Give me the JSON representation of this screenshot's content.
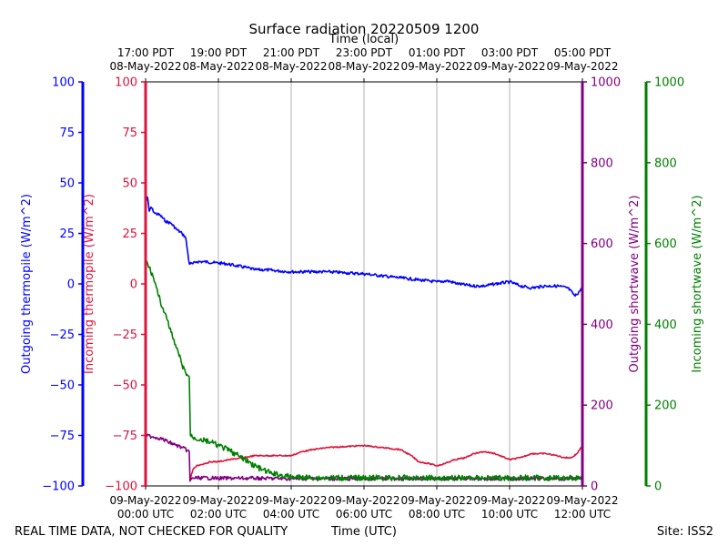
{
  "title": "Surface radiation 20220509 1200",
  "footer_left": "REAL TIME DATA, NOT CHECKED FOR QUALITY",
  "footer_right": "Site: ISS2",
  "chart_data": {
    "type": "line",
    "title": "Surface radiation 20220509 1200",
    "xlabel": "Time (UTC)",
    "xlabel_top": "Time (local)",
    "xlim": [
      0,
      12
    ],
    "x_ticks_bottom": [
      {
        "x": 0,
        "line1": "09-May-2022",
        "line2": "00:00 UTC"
      },
      {
        "x": 2,
        "line1": "09-May-2022",
        "line2": "02:00 UTC"
      },
      {
        "x": 4,
        "line1": "09-May-2022",
        "line2": "04:00 UTC"
      },
      {
        "x": 6,
        "line1": "09-May-2022",
        "line2": "06:00 UTC"
      },
      {
        "x": 8,
        "line1": "09-May-2022",
        "line2": "08:00 UTC"
      },
      {
        "x": 10,
        "line1": "09-May-2022",
        "line2": "10:00 UTC"
      },
      {
        "x": 12,
        "line1": "09-May-2022",
        "line2": "12:00 UTC"
      }
    ],
    "x_ticks_top": [
      {
        "x": 0,
        "line1": "17:00 PDT",
        "line2": "08-May-2022"
      },
      {
        "x": 2,
        "line1": "19:00 PDT",
        "line2": "08-May-2022"
      },
      {
        "x": 4,
        "line1": "21:00 PDT",
        "line2": "08-May-2022"
      },
      {
        "x": 6,
        "line1": "23:00 PDT",
        "line2": "08-May-2022"
      },
      {
        "x": 8,
        "line1": "01:00 PDT",
        "line2": "09-May-2022"
      },
      {
        "x": 10,
        "line1": "03:00 PDT",
        "line2": "09-May-2022"
      },
      {
        "x": 12,
        "line1": "05:00 PDT",
        "line2": "09-May-2022"
      }
    ],
    "grid_x": true,
    "axes": [
      {
        "id": "outgoing_thermopile",
        "label": "Outgoing thermopile (W/m^2)",
        "color": "#0000ff",
        "ylim": [
          -100,
          100
        ],
        "ticks": [
          -100,
          -75,
          -50,
          -25,
          0,
          25,
          50,
          75,
          100
        ]
      },
      {
        "id": "incoming_thermopile",
        "label": "Incoming thermopile (W/m^2)",
        "color": "#dc143c",
        "ylim": [
          -100,
          100
        ],
        "ticks": [
          -100,
          -75,
          -50,
          -25,
          0,
          25,
          50,
          75,
          100
        ]
      },
      {
        "id": "outgoing_shortwave",
        "label": "Outgoing shortwave (W/m^2)",
        "color": "#800080",
        "ylim": [
          0,
          1000
        ],
        "ticks": [
          0,
          200,
          400,
          600,
          800,
          1000
        ]
      },
      {
        "id": "incoming_shortwave",
        "label": "Incoming shortwave (W/m^2)",
        "color": "#008000",
        "ylim": [
          0,
          1000
        ],
        "ticks": [
          0,
          200,
          400,
          600,
          800,
          1000
        ]
      }
    ],
    "series": [
      {
        "name": "Outgoing thermopile",
        "axis": "outgoing_thermopile",
        "color": "#0000ff",
        "x": [
          0,
          0.05,
          0.1,
          0.15,
          0.25,
          0.4,
          0.55,
          0.7,
          0.85,
          1.0,
          1.1,
          1.2,
          1.3,
          1.4,
          1.6,
          1.9,
          2.2,
          2.5,
          2.8,
          3.0,
          3.3,
          3.6,
          4.0,
          4.5,
          5.0,
          5.5,
          6.0,
          6.5,
          7.0,
          7.5,
          8.0,
          8.3,
          8.6,
          9.0,
          9.3,
          9.6,
          10.0,
          10.3,
          10.6,
          11.0,
          11.3,
          11.6,
          11.8,
          12.0
        ],
        "y": [
          40,
          43,
          36,
          38,
          35,
          34,
          31,
          30,
          27,
          25,
          23,
          10,
          10,
          11,
          11,
          10.5,
          10,
          9,
          8,
          7,
          7,
          6.5,
          6,
          6,
          6,
          5.5,
          5,
          4,
          3,
          2,
          1,
          1.5,
          0,
          -1,
          -1,
          0,
          1,
          -1,
          -2,
          -1,
          -1,
          -2,
          -6,
          -2
        ]
      },
      {
        "name": "Incoming thermopile",
        "axis": "incoming_thermopile",
        "color": "#dc143c",
        "x": [
          1.22,
          1.3,
          1.4,
          1.6,
          1.8,
          2.0,
          2.3,
          2.7,
          3.0,
          3.3,
          3.6,
          4.0,
          4.3,
          4.6,
          5.0,
          5.5,
          6.0,
          6.5,
          7.0,
          7.3,
          7.5,
          7.8,
          8.0,
          8.2,
          8.5,
          8.8,
          9.0,
          9.3,
          9.6,
          10.0,
          10.3,
          10.6,
          11.0,
          11.3,
          11.5,
          11.7,
          11.85,
          12.0
        ],
        "y": [
          -97,
          -92,
          -90,
          -89,
          -88,
          -88,
          -87,
          -86,
          -85,
          -85,
          -85,
          -85,
          -83,
          -82,
          -81,
          -80.5,
          -80,
          -81,
          -82,
          -85,
          -88,
          -89,
          -90,
          -89,
          -87,
          -86,
          -84,
          -83,
          -84,
          -87,
          -86,
          -84,
          -84,
          -85,
          -86,
          -86,
          -84,
          -80
        ]
      },
      {
        "name": "Outgoing shortwave",
        "axis": "outgoing_shortwave",
        "color": "#800080",
        "x": [
          0,
          0.2,
          0.4,
          0.6,
          0.8,
          1.0,
          1.2,
          1.22,
          1.3,
          1.5,
          2.0,
          2.5,
          3.0,
          4.0,
          5.0,
          6.0,
          7.0,
          8.0,
          9.0,
          10.0,
          11.0,
          12.0
        ],
        "y": [
          125,
          122,
          118,
          110,
          102,
          95,
          85,
          12,
          20,
          20,
          19,
          19,
          19,
          18,
          18,
          18,
          18,
          18,
          18,
          18,
          18,
          18
        ]
      },
      {
        "name": "Incoming shortwave",
        "axis": "incoming_shortwave",
        "color": "#008000",
        "x": [
          0,
          0.1,
          0.2,
          0.3,
          0.4,
          0.5,
          0.6,
          0.7,
          0.8,
          0.9,
          1.0,
          1.1,
          1.2,
          1.23,
          1.3,
          1.5,
          1.8,
          2.0,
          2.3,
          2.6,
          2.9,
          3.2,
          3.5,
          4.0,
          5.0,
          6.0,
          7.0,
          8.0,
          9.0,
          10.0,
          11.0,
          12.0
        ],
        "y": [
          560,
          540,
          520,
          490,
          460,
          430,
          410,
          380,
          350,
          330,
          300,
          280,
          270,
          125,
          120,
          115,
          108,
          100,
          88,
          72,
          55,
          40,
          30,
          22,
          20,
          20,
          20,
          20,
          20,
          20,
          20,
          20
        ]
      }
    ]
  }
}
